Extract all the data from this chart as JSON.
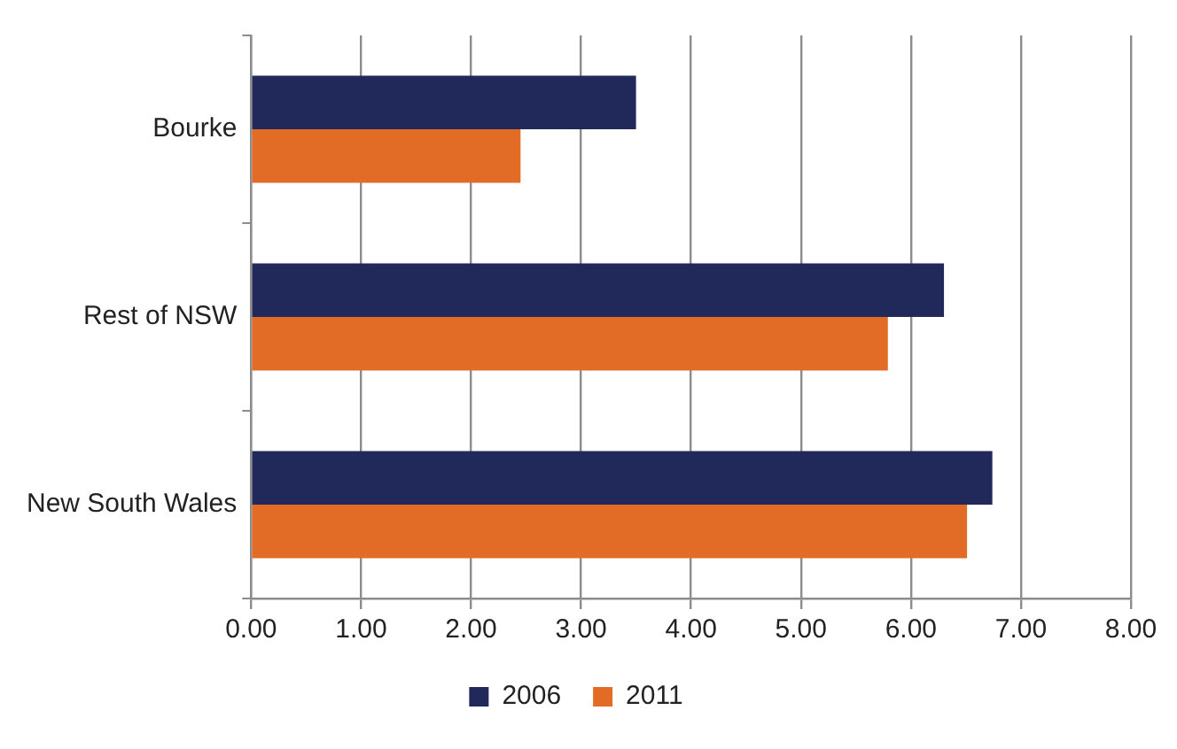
{
  "chart_data": {
    "type": "bar",
    "orientation": "horizontal",
    "categories": [
      "Bourke",
      "Rest of NSW",
      "New South Wales"
    ],
    "series": [
      {
        "name": "2006",
        "color": "#20295a",
        "values": [
          3.5,
          6.3,
          6.74
        ]
      },
      {
        "name": "2011",
        "color": "#e26c26",
        "values": [
          2.45,
          5.79,
          6.51
        ]
      }
    ],
    "xlim": [
      0,
      8
    ],
    "xticks": [
      {
        "value": 0,
        "label": "0.00"
      },
      {
        "value": 1,
        "label": "1.00"
      },
      {
        "value": 2,
        "label": "2.00"
      },
      {
        "value": 3,
        "label": "3.00"
      },
      {
        "value": 4,
        "label": "4.00"
      },
      {
        "value": 5,
        "label": "5.00"
      },
      {
        "value": 6,
        "label": "6.00"
      },
      {
        "value": 7,
        "label": "7.00"
      },
      {
        "value": 8,
        "label": "8.00"
      }
    ],
    "grid": "x",
    "legend": "bottom"
  }
}
